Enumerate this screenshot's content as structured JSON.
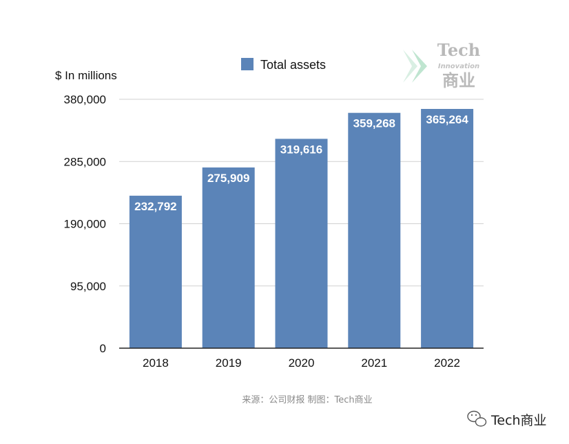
{
  "chart_data": {
    "type": "bar",
    "categories": [
      "2018",
      "2019",
      "2020",
      "2021",
      "2022"
    ],
    "series": [
      {
        "name": "Total assets",
        "values": [
          232792,
          275909,
          319616,
          359268,
          365264
        ],
        "color": "#5b84b8"
      }
    ],
    "data_labels": [
      "232,792",
      "275,909",
      "319,616",
      "359,268",
      "365,264"
    ],
    "ylabel": "$ In millions",
    "xlabel": "",
    "ylim": [
      0,
      380000
    ],
    "yticks": [
      0,
      95000,
      190000,
      285000,
      380000
    ],
    "ytick_labels": [
      "0",
      "95,000",
      "190,000",
      "285,000",
      "380,000"
    ],
    "grid": true,
    "legend": "top-center"
  },
  "source_text": "来源：公司财报 制图：Tech商业",
  "brand_text": "Tech商业",
  "watermark": {
    "line1": "Tech",
    "line2": "Innovation",
    "line3": "商业"
  },
  "colors": {
    "bar": "#5b84b8",
    "grid": "#d0d0d0",
    "axis": "#222222"
  }
}
